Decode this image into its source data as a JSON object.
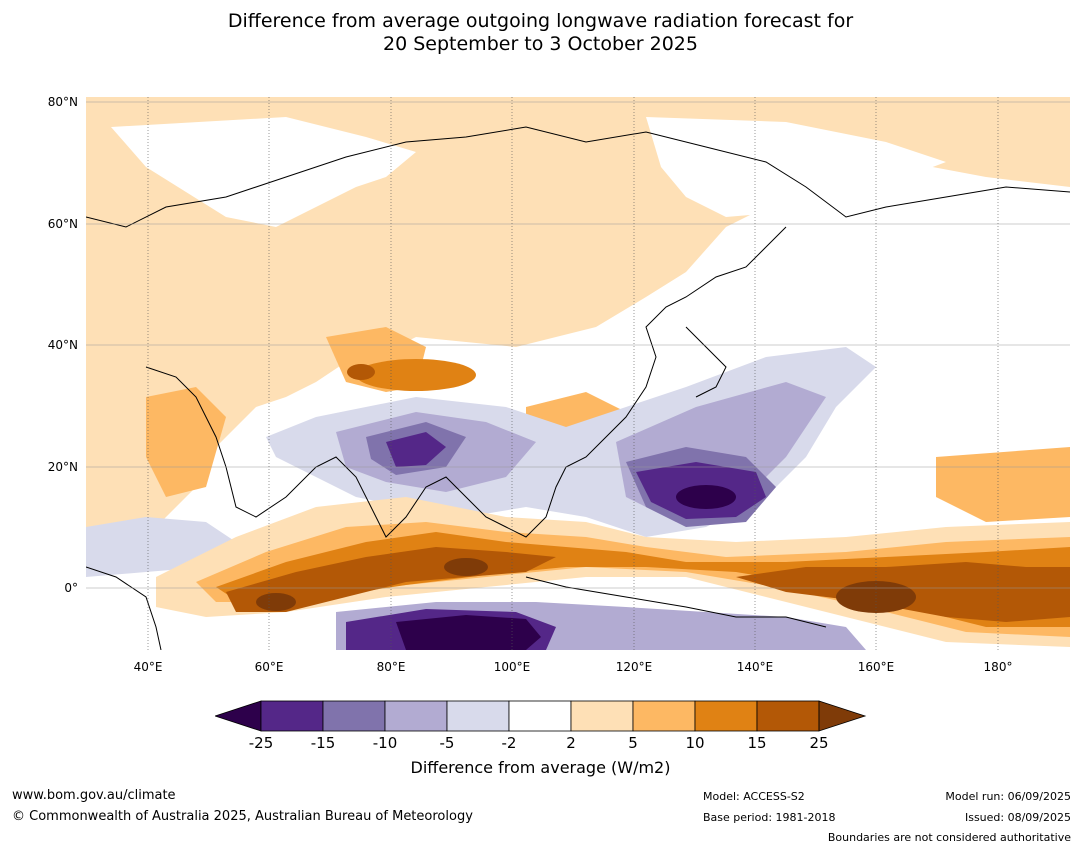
{
  "title_line1": "Difference from average outgoing longwave radiation forecast for",
  "title_line2": "20 September to 3 October 2025",
  "map": {
    "lat_labels": [
      "80°N",
      "60°N",
      "40°N",
      "20°N",
      "0°"
    ],
    "lon_labels": [
      "40°E",
      "60°E",
      "80°E",
      "100°E",
      "120°E",
      "140°E",
      "160°E",
      "180°"
    ]
  },
  "colorbar": {
    "ticks": [
      "-25",
      "-15",
      "-10",
      "-5",
      "-2",
      "2",
      "5",
      "10",
      "15",
      "25"
    ],
    "colors": [
      "#2d004b",
      "#542788",
      "#8073ac",
      "#b2abd2",
      "#d8daeb",
      "#ffffff",
      "#fee0b6",
      "#fdb863",
      "#e08214",
      "#b35806",
      "#7f3b08"
    ],
    "label": "Difference from average (W/m2)"
  },
  "footer": {
    "website": "www.bom.gov.au/climate",
    "copyright": "© Commonwealth of Australia 2025, Australian Bureau of Meteorology",
    "model": "Model: ACCESS-S2",
    "base_period": "Base period: 1981-2018",
    "model_run": "Model run: 06/09/2025",
    "issued": "Issued: 08/09/2025",
    "disclaimer": "Boundaries are not considered authoritative"
  }
}
